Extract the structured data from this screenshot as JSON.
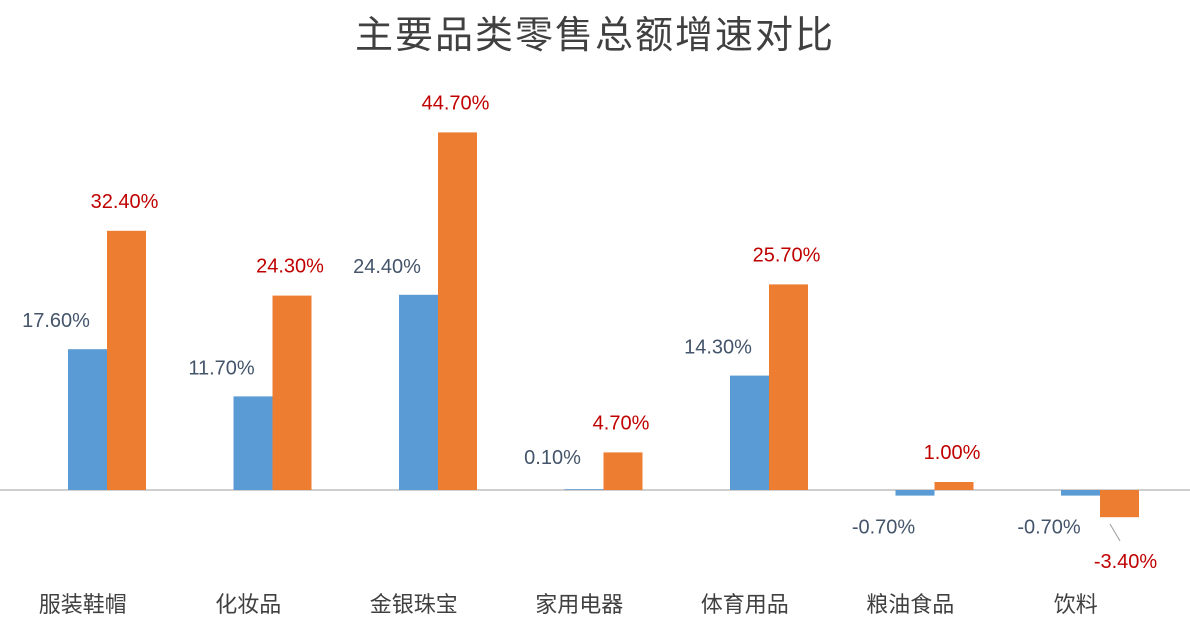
{
  "chart_data": {
    "type": "bar",
    "title": "主要品类零售总额增速对比",
    "categories": [
      "服装鞋帽",
      "化妆品",
      "金银珠宝",
      "家用电器",
      "体育用品",
      "粮油食品",
      "饮料"
    ],
    "series": [
      {
        "values": [
          17.6,
          11.7,
          24.4,
          0.1,
          14.3,
          -0.7,
          -0.7
        ],
        "labels": [
          "17.60%",
          "11.70%",
          "24.40%",
          "0.10%",
          "14.30%",
          "-0.70%",
          "-0.70%"
        ],
        "color": "#5B9BD5",
        "label_color": "#44546A"
      },
      {
        "values": [
          32.4,
          24.3,
          44.7,
          4.7,
          25.7,
          1.0,
          -3.4
        ],
        "labels": [
          "32.40%",
          "24.30%",
          "44.70%",
          "4.70%",
          "25.70%",
          "1.00%",
          "-3.40%"
        ],
        "color": "#ED7D31",
        "label_color": "#C00000"
      }
    ],
    "axis_color": "#BFBFBF",
    "ylim": [
      -5,
      50
    ],
    "legend": "none",
    "grid": false
  }
}
